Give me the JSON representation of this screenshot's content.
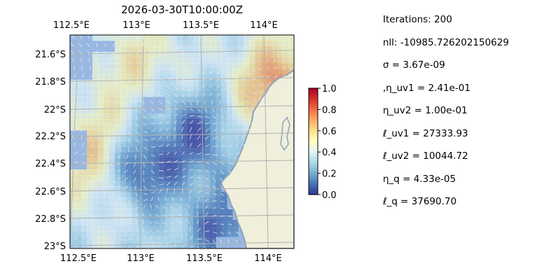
{
  "map": {
    "title": "2026-03-30T10:00:00Z",
    "lon_ticks": [
      "112.5°E",
      "113°E",
      "113.5°E",
      "114°E"
    ],
    "lat_ticks": [
      "21.6°S",
      "21.8°S",
      "22°S",
      "22.2°S",
      "22.4°S",
      "22.6°S",
      "22.8°S",
      "23°S"
    ],
    "extent": {
      "lon_min": 112.5,
      "lon_max": 114.2,
      "lat_min": -23.0,
      "lat_max": -21.5
    },
    "colormap": "RdYlBu_r",
    "land_color": "#efefdb",
    "masked_color": "#98b8e2",
    "coast_color": "#8da3b8"
  },
  "colorbar": {
    "ticks": [
      "0.0",
      "0.2",
      "0.4",
      "0.6",
      "0.8",
      "1.0"
    ],
    "range": [
      0,
      1
    ]
  },
  "stats": [
    "Iterations: 200",
    "nll: -10985.726202150629",
    "σ = 3.67e-09",
    ",η_uv1 = 2.41e-01",
    "η_uv2 = 1.00e-01",
    "ℓ_uv1 = 27333.93",
    "ℓ_uv2 = 10044.72",
    "η_q = 4.33e-05",
    "ℓ_q = 37690.70"
  ]
}
